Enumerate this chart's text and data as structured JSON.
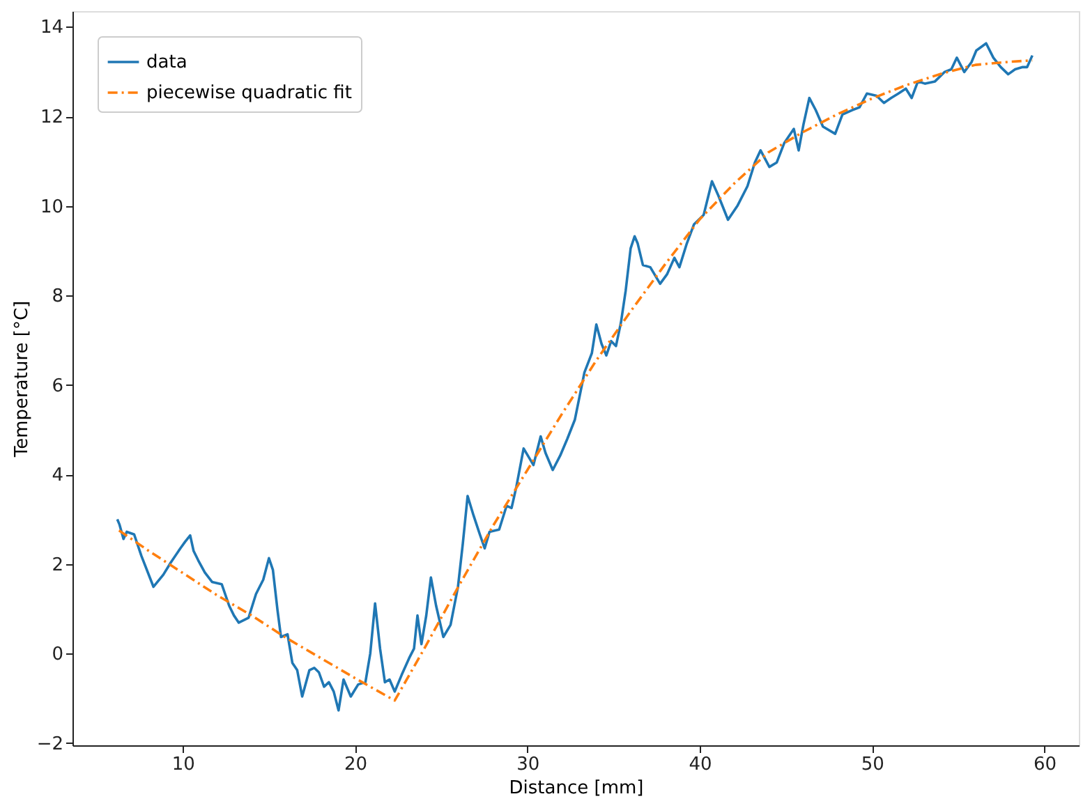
{
  "chart_data": {
    "type": "line",
    "xlabel": "Distance [mm]",
    "ylabel": "Temperature [°C]",
    "xlim": [
      3.6,
      62.0
    ],
    "ylim": [
      -2.05,
      14.35
    ],
    "xticks": [
      10,
      20,
      30,
      40,
      50,
      60
    ],
    "yticks": [
      -2,
      0,
      2,
      4,
      6,
      8,
      10,
      12,
      14
    ],
    "grid": false,
    "legend": "top left",
    "marker": "none",
    "series": [
      {
        "name": "data",
        "color": "#1f77b4",
        "line_style": "solid",
        "x": [
          6.2,
          6.33,
          6.56,
          6.75,
          7.18,
          7.6,
          8.3,
          8.87,
          9.3,
          9.86,
          10.14,
          10.43,
          10.63,
          10.9,
          11.28,
          11.7,
          12.26,
          12.69,
          12.97,
          13.25,
          13.82,
          14.25,
          14.67,
          15.0,
          15.23,
          15.5,
          15.7,
          16.08,
          16.36,
          16.64,
          16.93,
          17.35,
          17.63,
          17.9,
          18.2,
          18.48,
          18.76,
          19.04,
          19.33,
          19.75,
          20.18,
          20.6,
          20.88,
          21.16,
          21.45,
          21.73,
          22.0,
          22.3,
          22.7,
          23.14,
          23.42,
          23.62,
          23.85,
          24.13,
          24.4,
          24.7,
          25.12,
          25.54,
          25.97,
          26.25,
          26.53,
          26.87,
          27.24,
          27.52,
          27.8,
          28.36,
          28.79,
          29.08,
          29.36,
          29.78,
          30.35,
          30.77,
          31.05,
          31.47,
          31.9,
          32.32,
          32.75,
          33.31,
          33.74,
          34.0,
          34.3,
          34.58,
          34.86,
          35.14,
          35.43,
          35.7,
          35.99,
          36.22,
          36.4,
          36.7,
          37.13,
          37.7,
          38.1,
          38.53,
          38.82,
          39.25,
          39.67,
          40.23,
          40.71,
          41.08,
          41.64,
          42.2,
          42.77,
          43.2,
          43.53,
          44.04,
          44.47,
          44.9,
          45.46,
          45.74,
          46.02,
          46.36,
          46.73,
          47.15,
          47.86,
          48.28,
          48.85,
          49.27,
          49.7,
          50.26,
          50.69,
          51.1,
          51.53,
          51.96,
          52.3,
          52.66,
          53.08,
          53.65,
          54.2,
          54.6,
          54.92,
          55.35,
          55.77,
          56.05,
          56.62,
          57.04,
          57.47,
          57.9,
          58.3,
          58.74,
          59.0,
          59.3
        ],
        "values": [
          3.0,
          2.88,
          2.56,
          2.72,
          2.66,
          2.18,
          1.49,
          1.76,
          2.03,
          2.35,
          2.5,
          2.64,
          2.29,
          2.08,
          1.81,
          1.6,
          1.55,
          1.07,
          0.85,
          0.69,
          0.8,
          1.33,
          1.65,
          2.13,
          1.87,
          0.96,
          0.37,
          0.43,
          -0.21,
          -0.37,
          -0.96,
          -0.37,
          -0.32,
          -0.42,
          -0.74,
          -0.64,
          -0.85,
          -1.27,
          -0.58,
          -0.96,
          -0.69,
          -0.64,
          0.0,
          1.12,
          0.11,
          -0.64,
          -0.58,
          -0.85,
          -0.48,
          -0.1,
          0.11,
          0.85,
          0.21,
          0.85,
          1.7,
          1.07,
          0.37,
          0.64,
          1.49,
          2.45,
          3.52,
          3.09,
          2.66,
          2.35,
          2.72,
          2.77,
          3.3,
          3.25,
          3.73,
          4.58,
          4.21,
          4.85,
          4.48,
          4.1,
          4.42,
          4.8,
          5.22,
          6.28,
          6.71,
          7.35,
          6.92,
          6.66,
          6.98,
          6.87,
          7.4,
          8.1,
          9.05,
          9.32,
          9.16,
          8.68,
          8.63,
          8.26,
          8.47,
          8.84,
          8.63,
          9.16,
          9.59,
          9.8,
          10.55,
          10.23,
          9.69,
          10.01,
          10.44,
          10.97,
          11.24,
          10.87,
          10.97,
          11.4,
          11.72,
          11.24,
          11.82,
          12.41,
          12.14,
          11.77,
          11.61,
          12.04,
          12.14,
          12.2,
          12.51,
          12.46,
          12.3,
          12.41,
          12.51,
          12.62,
          12.41,
          12.78,
          12.73,
          12.78,
          12.99,
          13.05,
          13.31,
          12.99,
          13.21,
          13.47,
          13.63,
          13.31,
          13.1,
          12.94,
          13.05,
          13.1,
          13.1,
          13.36
        ]
      },
      {
        "name": "piecewise quadratic fit",
        "color": "#ff7f0e",
        "line_style": "dashdot",
        "x": [
          6.3,
          8,
          10,
          12,
          14,
          16,
          18,
          20,
          22.3,
          24,
          26,
          28,
          30,
          32,
          34,
          36,
          38,
          40,
          42,
          44,
          46,
          48,
          50,
          52,
          54,
          56,
          58,
          59.3
        ],
        "values": [
          2.75,
          2.3,
          1.8,
          1.3,
          0.85,
          0.35,
          -0.1,
          -0.55,
          -1.05,
          0.1,
          1.5,
          2.85,
          4.1,
          5.35,
          6.55,
          7.65,
          8.7,
          9.7,
          10.5,
          11.2,
          11.65,
          12.05,
          12.4,
          12.7,
          12.95,
          13.15,
          13.22,
          13.25
        ]
      }
    ]
  }
}
